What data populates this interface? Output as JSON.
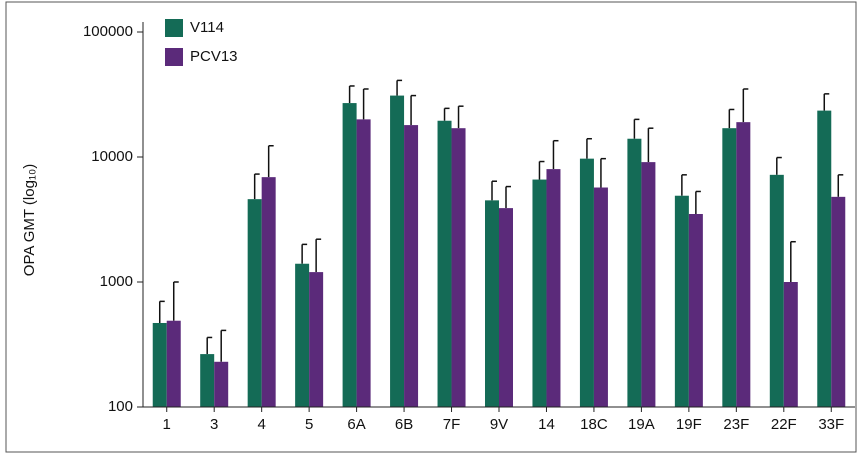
{
  "chart_data": {
    "type": "bar",
    "ylabel": "OPA GMT (log₁₀)",
    "categories": [
      "1",
      "3",
      "4",
      "5",
      "6A",
      "6B",
      "7F",
      "9V",
      "14",
      "18C",
      "19A",
      "19F",
      "23F",
      "22F",
      "33F"
    ],
    "series": [
      {
        "name": "V114",
        "color": "#146b56",
        "values": [
          470,
          265,
          4600,
          1400,
          27000,
          31000,
          19500,
          4500,
          6600,
          9700,
          14000,
          4900,
          17000,
          7200,
          23500
        ],
        "upper": [
          700,
          360,
          7300,
          2000,
          37000,
          41000,
          24500,
          6400,
          9200,
          14000,
          20000,
          7200,
          24000,
          9900,
          32000
        ]
      },
      {
        "name": "PCV13",
        "color": "#5b2a7a",
        "values": [
          490,
          230,
          6900,
          1200,
          20000,
          18000,
          17000,
          3900,
          8000,
          5700,
          9100,
          3500,
          19000,
          1000,
          4800
        ],
        "upper": [
          1000,
          410,
          12300,
          2200,
          35000,
          31000,
          25500,
          5800,
          13500,
          9700,
          17000,
          5300,
          35000,
          2100,
          7200
        ]
      }
    ],
    "log_scale": true,
    "ylim": [
      100,
      100000
    ],
    "yticks": [
      100,
      1000,
      10000,
      100000
    ],
    "legend": "upper left"
  }
}
